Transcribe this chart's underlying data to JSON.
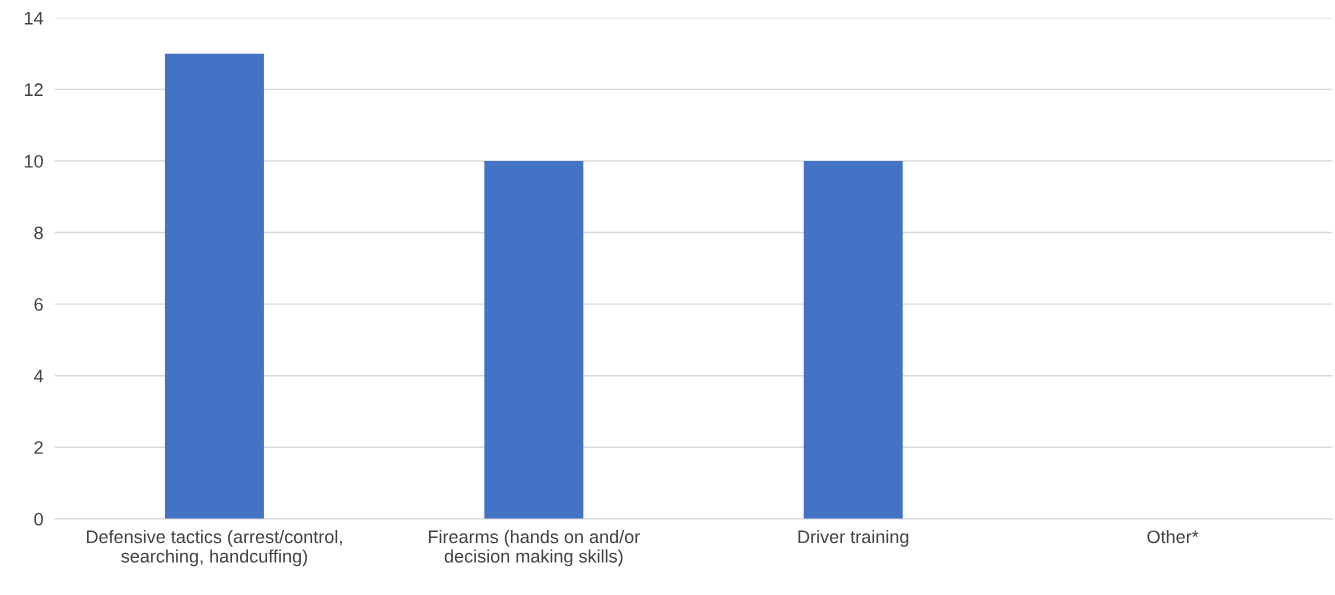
{
  "chart_data": {
    "type": "bar",
    "categories": [
      "Defensive tactics (arrest/control,\nsearching, handcuffing)",
      "Firearms (hands on and/or\ndecision making skills)",
      "Driver training",
      "Other*"
    ],
    "values": [
      13,
      10,
      10,
      0
    ],
    "color": "#4472c4",
    "ylim": [
      0,
      14
    ],
    "yticks": [
      0,
      2,
      4,
      6,
      8,
      10,
      12,
      14
    ],
    "grid": "y"
  }
}
